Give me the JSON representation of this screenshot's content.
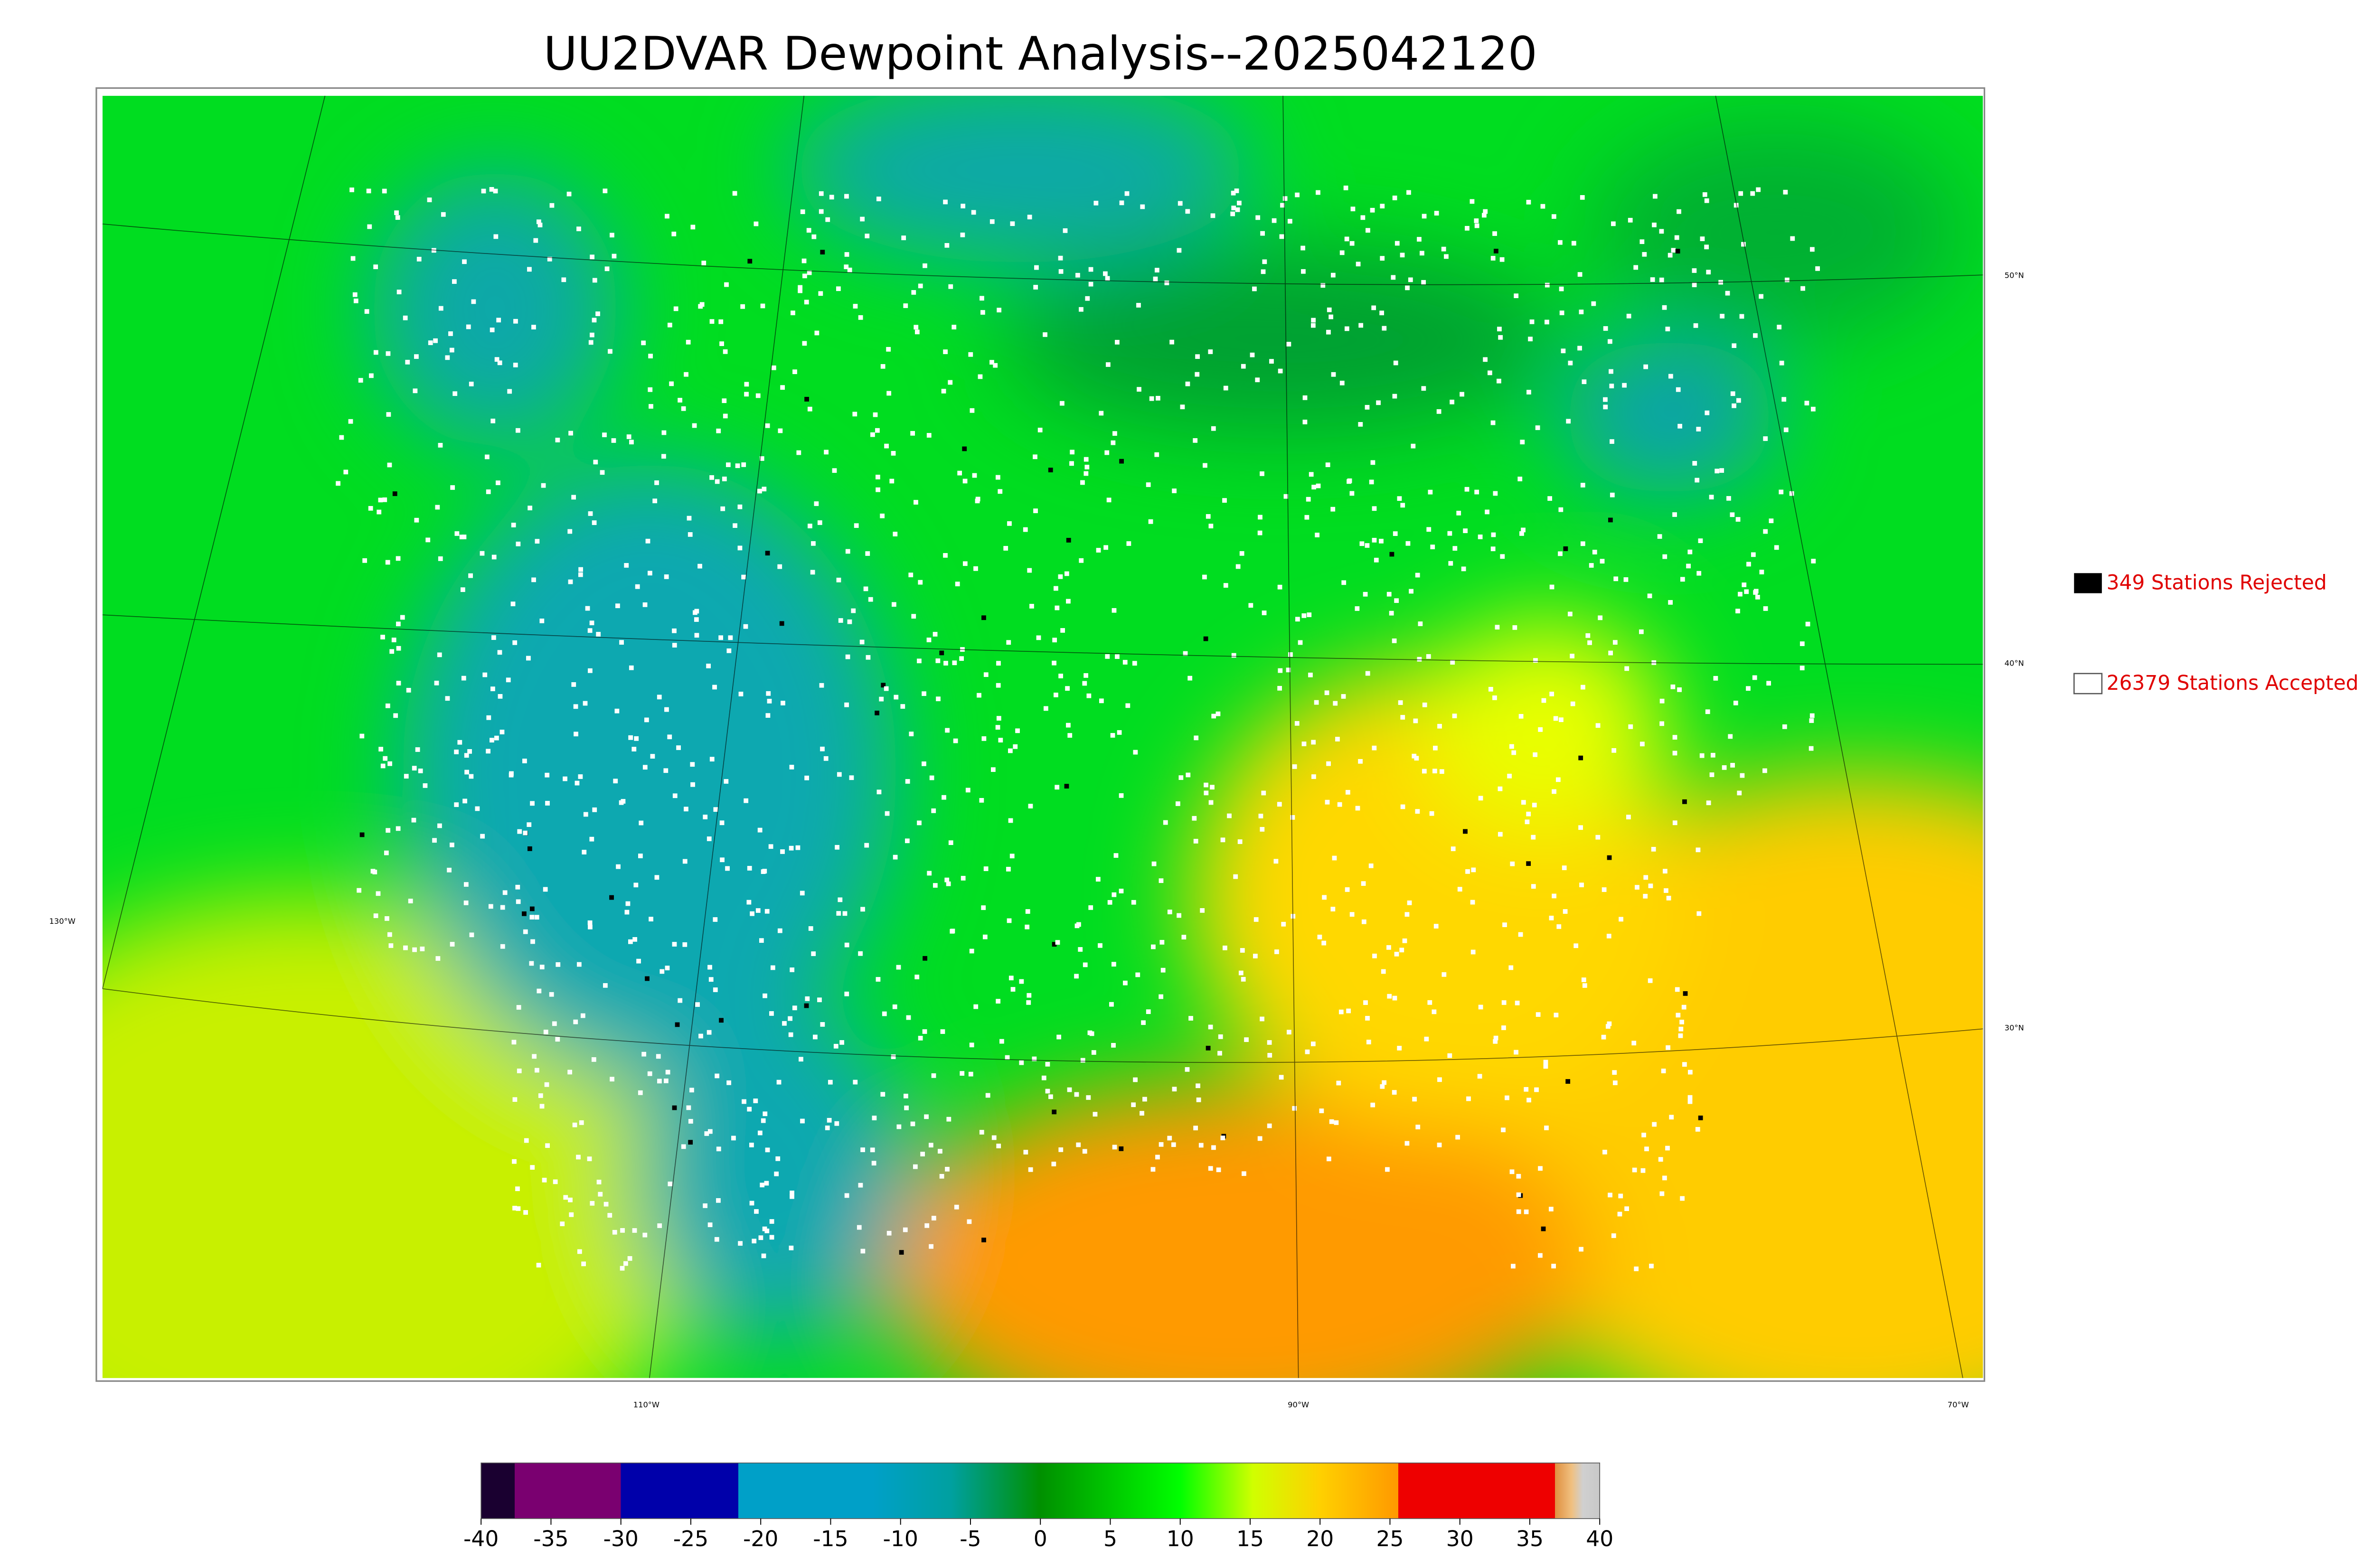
{
  "title": "UU2DVAR Dewpoint Analysis--2025042120",
  "legend": [
    "349 Stations Rejected",
    "26379 Stations Accepted"
  ],
  "grid_labels": {
    "lat": [
      "50°N",
      "40°N",
      "30°N"
    ],
    "lon": [
      "130°W",
      "110°W",
      "90°W",
      "70°W"
    ]
  },
  "colorbar": {
    "range": [
      -40,
      40
    ],
    "ticks": [
      -40,
      -35,
      -30,
      -25,
      -20,
      -15,
      -10,
      -5,
      0,
      5,
      10,
      15,
      20,
      25,
      30,
      35,
      40
    ]
  }
}
